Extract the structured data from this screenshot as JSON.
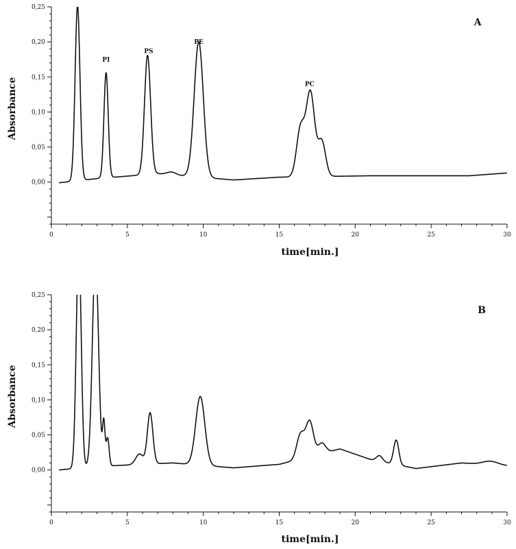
{
  "chart_data": [
    {
      "type": "line",
      "panel_label": "A",
      "xlabel": "time[min.]",
      "ylabel": "Absorbance",
      "xlim": [
        0,
        30
      ],
      "ylim": [
        -0.06,
        0.25
      ],
      "x_ticks": [
        "0",
        "5",
        "10",
        "15",
        "20",
        "25",
        "30"
      ],
      "y_ticks": [
        "0,00",
        "0,05",
        "0,10",
        "0,15",
        "0,20",
        "0,25"
      ],
      "baseline": [
        [
          0.5,
          -0.001
        ],
        [
          3,
          0.005
        ],
        [
          7,
          0.012
        ],
        [
          12,
          0.003
        ],
        [
          15,
          0.007
        ],
        [
          21,
          0.009
        ],
        [
          27.5,
          0.009
        ],
        [
          30,
          0.013
        ]
      ],
      "peaks": [
        {
          "center": 1.72,
          "height": 0.25,
          "width": 0.16
        },
        {
          "center": 3.6,
          "height": 0.15,
          "width": 0.14
        },
        {
          "center": 6.33,
          "height": 0.17,
          "width": 0.2
        },
        {
          "center": 7.9,
          "height": 0.004,
          "width": 0.3
        },
        {
          "center": 9.7,
          "height": 0.193,
          "width": 0.3
        },
        {
          "center": 16.4,
          "height": 0.068,
          "width": 0.26
        },
        {
          "center": 17.05,
          "height": 0.12,
          "width": 0.28
        },
        {
          "center": 17.8,
          "height": 0.05,
          "width": 0.25
        }
      ],
      "annotations": [
        {
          "text": "PI",
          "x": 3.6,
          "y": 0.172
        },
        {
          "text": "PS",
          "x": 6.4,
          "y": 0.184
        },
        {
          "text": "PE",
          "x": 9.7,
          "y": 0.197
        },
        {
          "text": "PC",
          "x": 17.0,
          "y": 0.137
        }
      ]
    },
    {
      "type": "line",
      "panel_label": "B",
      "xlabel": "time[min.]",
      "ylabel": "Absorbance",
      "xlim": [
        0,
        30
      ],
      "ylim": [
        -0.06,
        0.25
      ],
      "x_ticks": [
        "0",
        "5",
        "10",
        "15",
        "20",
        "25",
        "30"
      ],
      "y_ticks": [
        "0,00",
        "0,05",
        "0,10",
        "0,15",
        "0,20",
        "0,25"
      ],
      "baseline": [
        [
          0.5,
          0.0
        ],
        [
          3,
          0.005
        ],
        [
          8,
          0.01
        ],
        [
          12,
          0.003
        ],
        [
          15,
          0.008
        ],
        [
          19,
          0.03
        ],
        [
          21,
          0.015
        ],
        [
          24,
          0.002
        ],
        [
          27,
          0.01
        ],
        [
          30,
          0.006
        ]
      ],
      "peaks": [
        {
          "center": 1.8,
          "height": 0.32,
          "width": 0.16
        },
        {
          "center": 2.9,
          "height": 0.3,
          "width": 0.2
        },
        {
          "center": 3.45,
          "height": 0.06,
          "width": 0.08
        },
        {
          "center": 3.7,
          "height": 0.04,
          "width": 0.1
        },
        {
          "center": 5.8,
          "height": 0.015,
          "width": 0.25
        },
        {
          "center": 6.5,
          "height": 0.073,
          "width": 0.18
        },
        {
          "center": 9.8,
          "height": 0.098,
          "width": 0.3
        },
        {
          "center": 16.4,
          "height": 0.035,
          "width": 0.25
        },
        {
          "center": 17.0,
          "height": 0.05,
          "width": 0.25
        },
        {
          "center": 17.8,
          "height": 0.015,
          "width": 0.25
        },
        {
          "center": 21.6,
          "height": 0.008,
          "width": 0.2
        },
        {
          "center": 22.7,
          "height": 0.035,
          "width": 0.17
        },
        {
          "center": 28.9,
          "height": 0.005,
          "width": 0.5
        }
      ]
    }
  ]
}
